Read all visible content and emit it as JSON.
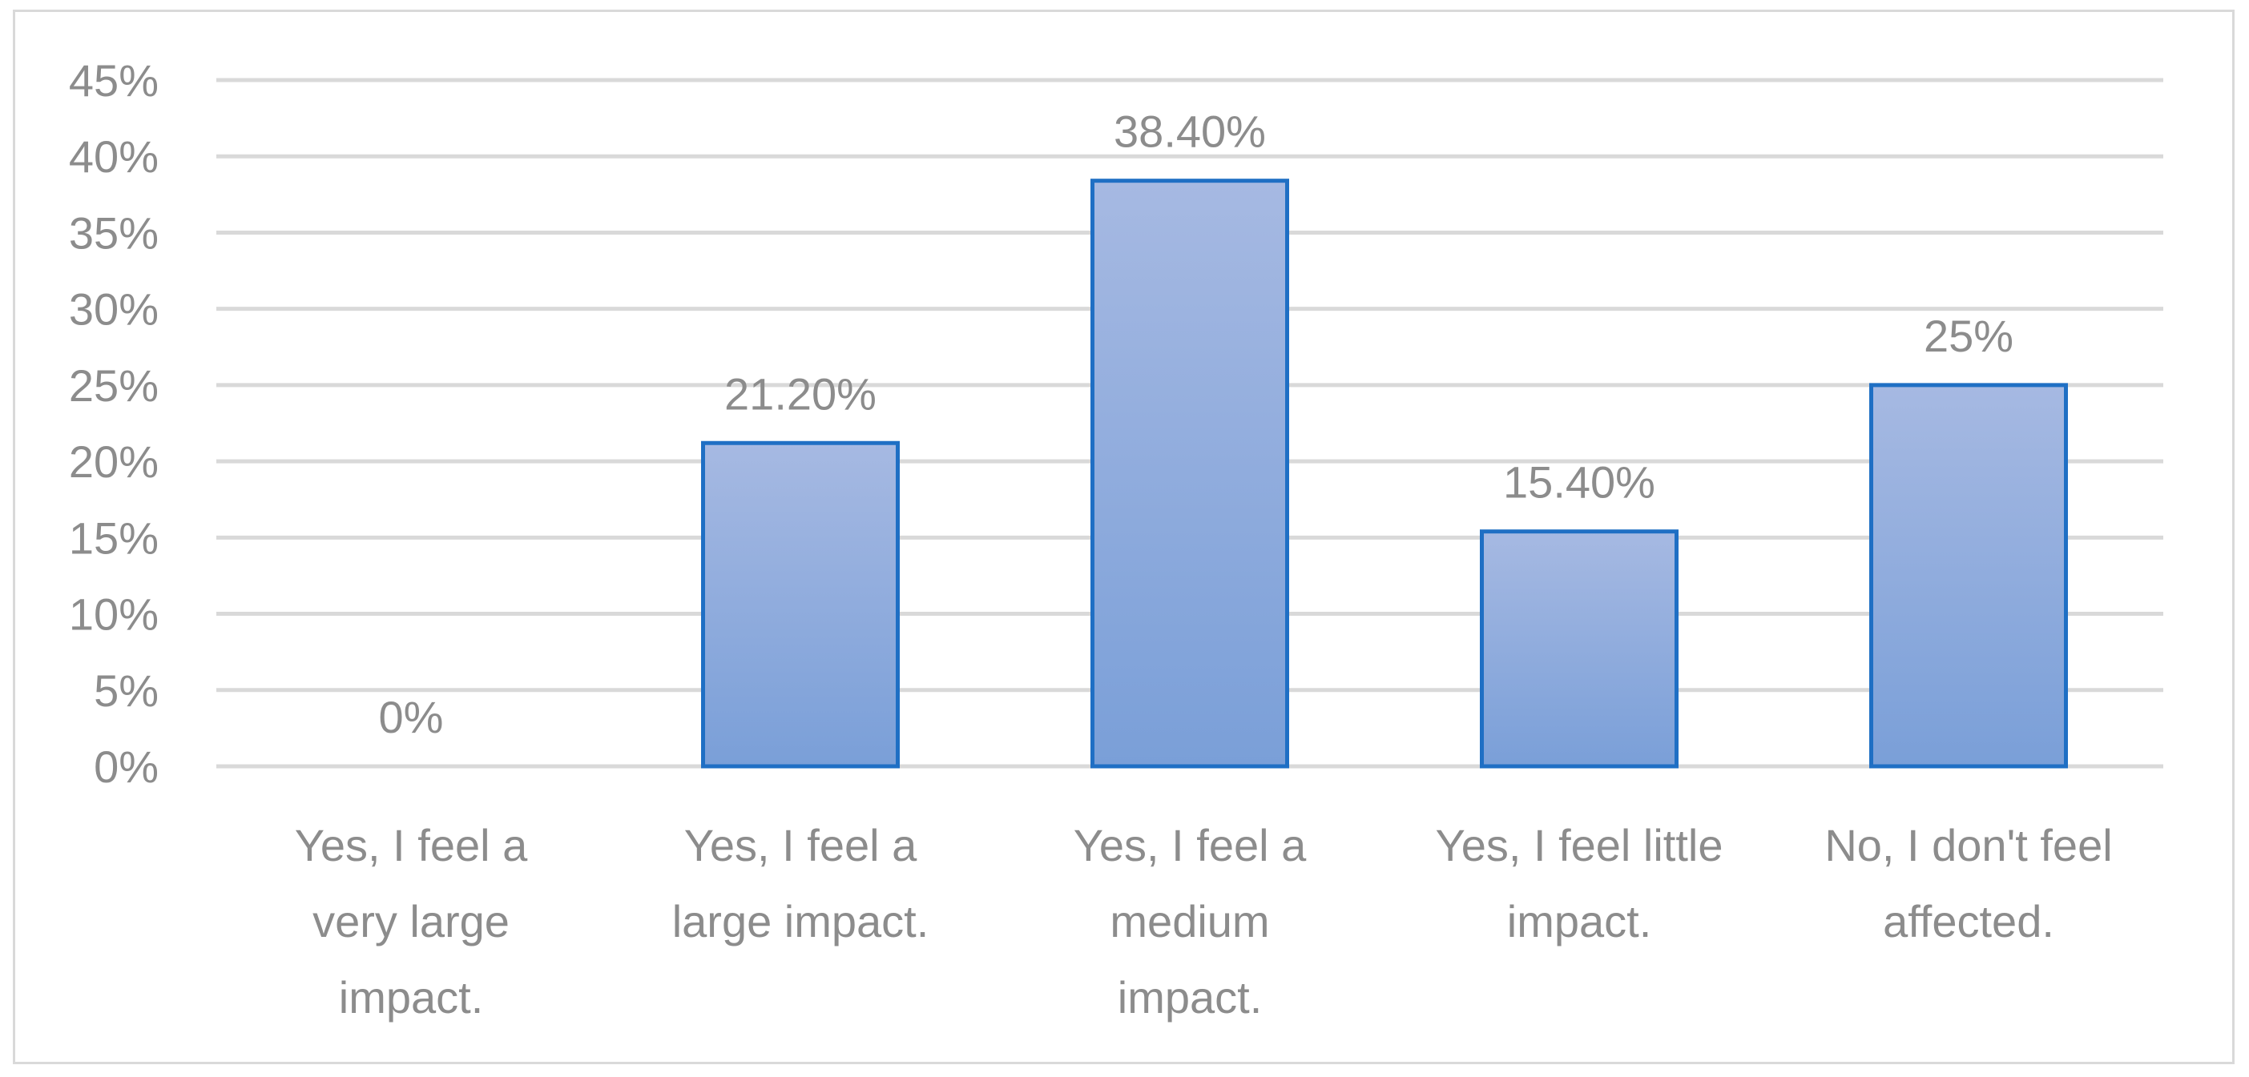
{
  "chart_data": {
    "type": "bar",
    "categories": [
      [
        "Yes, I feel a",
        "very large",
        "impact."
      ],
      [
        "Yes, I feel a",
        "large impact."
      ],
      [
        "Yes, I feel a",
        "medium",
        "impact."
      ],
      [
        "Yes, I feel little",
        "impact."
      ],
      [
        "No, I don't feel",
        "affected."
      ]
    ],
    "values": [
      0,
      21.2,
      38.4,
      15.4,
      25
    ],
    "data_labels": [
      "0%",
      "21.20%",
      "38.40%",
      "15.40%",
      "25%"
    ],
    "title": "",
    "xlabel": "",
    "ylabel": "",
    "ylim": [
      0,
      45
    ],
    "yticks": [
      0,
      5,
      10,
      15,
      20,
      25,
      30,
      35,
      40,
      45
    ],
    "ytick_labels": [
      "0%",
      "5%",
      "10%",
      "15%",
      "20%",
      "25%",
      "30%",
      "35%",
      "40%",
      "45%"
    ],
    "grid": true,
    "legend": "none",
    "colors": {
      "bar_fill_top": "#a6b9e2",
      "bar_fill_bottom": "#7a9fd8",
      "bar_stroke": "#1f6fc4",
      "grid": "#d9d9d9",
      "text": "#8c8c8c"
    }
  }
}
